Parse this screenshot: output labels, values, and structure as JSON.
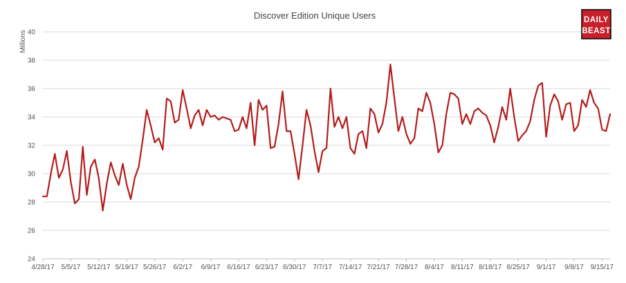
{
  "colors": {
    "series": "#b31b1b",
    "logo_bg": "#c8202a",
    "logo_border": "#000000"
  },
  "logo": {
    "line1": "DAILY",
    "line2": "BEAST"
  },
  "chart_data": {
    "type": "line",
    "title": "Discover Edition Unique Users",
    "xlabel": "",
    "ylabel": "Millions",
    "ylim": [
      24,
      40
    ],
    "yticks": [
      24,
      26,
      28,
      30,
      32,
      34,
      36,
      38,
      40
    ],
    "grid": true,
    "legend": "none",
    "x_start": "4/28/17",
    "x_tick_labels": [
      "4/28/17",
      "5/5/17",
      "5/12/17",
      "5/19/17",
      "5/26/17",
      "6/2/17",
      "6/9/17",
      "6/16/17",
      "6/23/17",
      "6/30/17",
      "7/7/17",
      "7/14/17",
      "7/21/17",
      "7/28/17",
      "8/4/17",
      "8/11/17",
      "8/18/17",
      "8/25/17",
      "9/1/17",
      "9/8/17",
      "9/15/17"
    ],
    "series": [
      {
        "name": "",
        "values": [
          28.4,
          28.4,
          30.0,
          31.4,
          29.7,
          30.3,
          31.6,
          29.4,
          27.9,
          28.2,
          31.9,
          28.5,
          30.5,
          31.0,
          29.7,
          27.4,
          29.3,
          30.8,
          29.9,
          29.2,
          30.7,
          29.2,
          28.2,
          29.7,
          30.5,
          32.4,
          34.5,
          33.4,
          32.2,
          32.5,
          31.7,
          35.3,
          35.1,
          33.6,
          33.8,
          35.9,
          34.6,
          33.2,
          34.1,
          34.5,
          33.4,
          34.5,
          34.0,
          34.1,
          33.8,
          34.0,
          33.9,
          33.8,
          33.0,
          33.1,
          34.0,
          33.2,
          35.0,
          32.0,
          35.2,
          34.5,
          34.8,
          31.8,
          31.9,
          33.5,
          35.8,
          33.0,
          33.0,
          31.4,
          29.6,
          32.0,
          34.5,
          33.4,
          31.6,
          30.1,
          31.6,
          31.8,
          36.0,
          33.3,
          34.0,
          33.2,
          34.0,
          31.8,
          31.4,
          32.8,
          33.0,
          31.8,
          34.6,
          34.2,
          32.9,
          33.5,
          35.0,
          37.7,
          35.3,
          33.0,
          34.0,
          32.8,
          32.1,
          32.5,
          34.6,
          34.4,
          35.7,
          35.0,
          33.5,
          31.5,
          32.0,
          34.2,
          35.7,
          35.6,
          35.3,
          33.5,
          34.2,
          33.5,
          34.4,
          34.6,
          34.3,
          34.1,
          33.4,
          32.2,
          33.3,
          34.7,
          33.8,
          36.0,
          34.0,
          32.3,
          32.7,
          33.0,
          33.7,
          35.2,
          36.2,
          36.4,
          32.6,
          34.8,
          35.6,
          35.1,
          33.8,
          34.9,
          35.0,
          33.0,
          33.4,
          35.2,
          34.7,
          35.9,
          35.0,
          34.6,
          33.1,
          33.0,
          34.2
        ]
      }
    ]
  }
}
